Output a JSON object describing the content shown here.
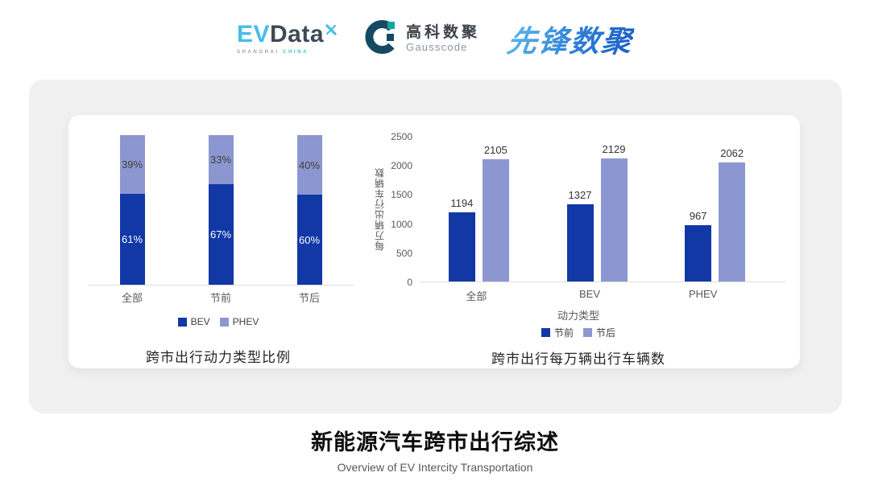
{
  "header": {
    "evdata": {
      "ev": "EV",
      "data": "Data",
      "sub_left": "SHANGHAI",
      "sub_right": "CHINA"
    },
    "gausscode": {
      "cn": "高科数聚",
      "en": "Gausscode"
    },
    "xianfeng": {
      "text": "先锋数聚"
    }
  },
  "colors": {
    "bev_dark_blue": "#1138A5",
    "phev_light_blue": "#8C97D1",
    "evdata_blue": "#45BDE8",
    "evdata_dark": "#3E4A56",
    "gausscode_navy": "#164A63",
    "gausscode_teal": "#12A5A0",
    "xianfeng_blue_light": "#5FBCF0",
    "xianfeng_blue_dark": "#1A5EC8",
    "axis_text": "#595959",
    "grid_line": "#DCDCDC"
  },
  "chart_data": [
    {
      "type": "bar",
      "variant": "stacked-percent",
      "title": "跨市出行动力类型比例",
      "categories": [
        "全部",
        "节前",
        "节后"
      ],
      "series": [
        {
          "name": "BEV",
          "values": [
            61,
            67,
            60
          ],
          "data_labels": [
            "61%",
            "67%",
            "60%"
          ],
          "color": "#1138A5",
          "label_color": "#FFFFFF"
        },
        {
          "name": "PHEV",
          "values": [
            39,
            33,
            40
          ],
          "data_labels": [
            "39%",
            "33%",
            "40%"
          ],
          "color": "#8C97D1",
          "label_color": "#3F3F3F"
        }
      ],
      "ylim": [
        0,
        100
      ],
      "legend_position": "bottom",
      "grid": false
    },
    {
      "type": "bar",
      "variant": "grouped",
      "title": "跨市出行每万辆出行车辆数",
      "categories": [
        "全部",
        "BEV",
        "PHEV"
      ],
      "xlabel": "动力类型",
      "ylabel": "每万辆出行车辆数",
      "yticks": [
        0,
        500,
        1000,
        1500,
        2000,
        2500
      ],
      "ylim": [
        0,
        2500
      ],
      "series": [
        {
          "name": "节前",
          "values": [
            1194,
            1327,
            967
          ],
          "color": "#1138A5"
        },
        {
          "name": "节后",
          "values": [
            2105,
            2129,
            2062
          ],
          "color": "#8C97D1"
        }
      ],
      "legend_position": "bottom",
      "grid": false
    }
  ],
  "footer": {
    "title": "新能源汽车跨市出行综述",
    "subtitle": "Overview of EV Intercity Transportation"
  }
}
